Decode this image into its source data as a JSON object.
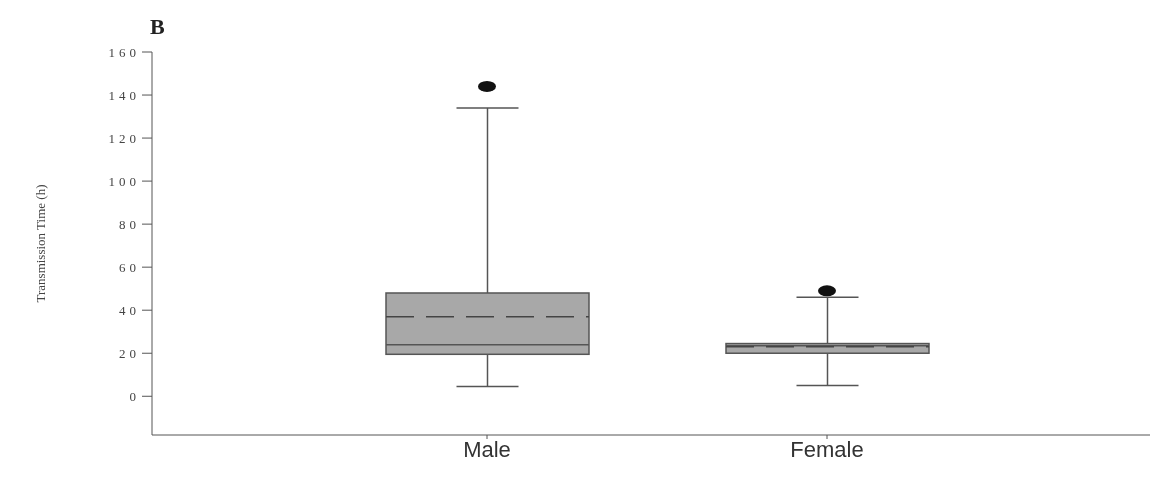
{
  "chart_data": {
    "type": "box",
    "title": "B",
    "ylabel": "Transmission Time (h)",
    "categories": [
      "Male",
      "Female"
    ],
    "color": "#a8a8a8",
    "boxes": [
      {
        "low": 4.5,
        "q1": 19.5,
        "median": 24,
        "q3": 48,
        "high": 134,
        "mean": 37,
        "outliers": [
          144
        ]
      },
      {
        "low": 5,
        "q1": 20,
        "median": 23.5,
        "q3": 24.5,
        "high": 46,
        "mean": 23,
        "outliers": [
          49
        ]
      }
    ],
    "ylim": [
      -18,
      160
    ],
    "yticks": [
      0,
      20,
      40,
      60,
      80,
      100,
      120,
      140,
      160
    ]
  }
}
